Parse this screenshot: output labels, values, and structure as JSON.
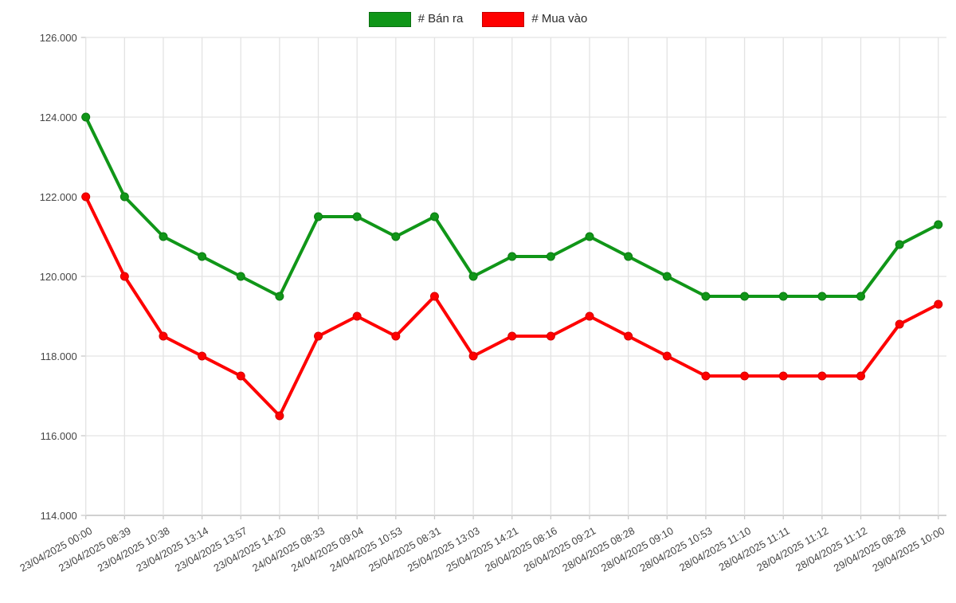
{
  "legend": {
    "items": [
      {
        "label": "# Bán ra",
        "color": "#109618",
        "border_color": "#0b6e12"
      },
      {
        "label": "# Mua vào",
        "color": "#fe0000",
        "border_color": "#c40000"
      }
    ]
  },
  "chart_data": {
    "type": "line",
    "x": [
      "23/04/2025 00:00",
      "23/04/2025 08:39",
      "23/04/2025 10:38",
      "23/04/2025 13:14",
      "23/04/2025 13:57",
      "23/04/2025 14:20",
      "24/04/2025 08:33",
      "24/04/2025 09:04",
      "24/04/2025 10:53",
      "25/04/2025 08:31",
      "25/04/2025 13:03",
      "25/04/2025 14:21",
      "26/04/2025 08:16",
      "26/04/2025 09:21",
      "28/04/2025 08:28",
      "28/04/2025 09:10",
      "28/04/2025 10:53",
      "28/04/2025 11:10",
      "28/04/2025 11:11",
      "28/04/2025 11:12",
      "28/04/2025 11:12",
      "29/04/2025 08:28",
      "29/04/2025 10:00"
    ],
    "series": [
      {
        "name": "# Bán ra",
        "color": "#109618",
        "point_border": "#0b7a12",
        "values": [
          124000,
          122000,
          121000,
          120500,
          120000,
          119500,
          121500,
          121500,
          121000,
          121500,
          120000,
          120500,
          120500,
          121000,
          120500,
          120000,
          119500,
          119500,
          119500,
          119500,
          119500,
          120800,
          121300
        ]
      },
      {
        "name": "# Mua vào",
        "color": "#fe0000",
        "point_border": "#d40000",
        "values": [
          122000,
          120000,
          118500,
          118000,
          117500,
          116500,
          118500,
          119000,
          118500,
          119500,
          118000,
          118500,
          118500,
          119000,
          118500,
          118000,
          117500,
          117500,
          117500,
          117500,
          117500,
          118800,
          119300
        ]
      }
    ],
    "ylim": [
      114000,
      126000
    ],
    "yticks": [
      114000,
      116000,
      118000,
      120000,
      122000,
      124000,
      126000
    ],
    "ytick_labels": [
      "114.000",
      "116.000",
      "118.000",
      "120.000",
      "122.000",
      "124.000",
      "126.000"
    ],
    "grid": true,
    "legend_position": "top",
    "x_label_angle_deg": -29,
    "grid_color": "#e3e3e3",
    "baseline_color": "#b3b3b3",
    "tick_color": "#c9c9c9",
    "tick_text_color": "#454545"
  }
}
